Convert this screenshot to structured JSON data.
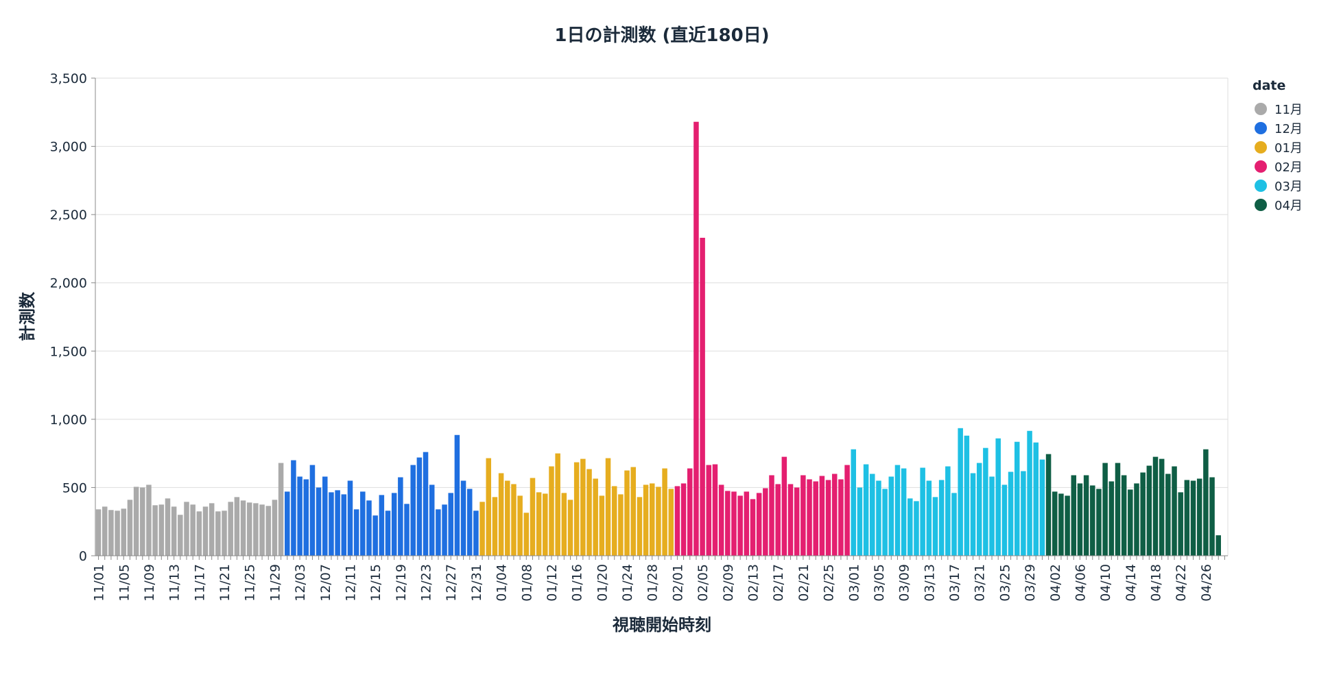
{
  "chart_data": {
    "type": "bar",
    "title": "1日の計測数 (直近180日)",
    "xlabel": "視聴開始時刻",
    "ylabel": "計測数",
    "ylim": [
      0,
      3500
    ],
    "yticks": [
      "0",
      "500",
      "1,000",
      "1,500",
      "2,000",
      "2,500",
      "3,000",
      "3,500"
    ],
    "grid": true,
    "legend": {
      "title": "date",
      "position": "right"
    },
    "series": [
      {
        "name": "11月",
        "color": "#aaaaaa",
        "x": [
          "11/01",
          "11/02",
          "11/03",
          "11/04",
          "11/05",
          "11/06",
          "11/07",
          "11/08",
          "11/09",
          "11/10",
          "11/11",
          "11/12",
          "11/13",
          "11/14",
          "11/15",
          "11/16",
          "11/17",
          "11/18",
          "11/19",
          "11/20",
          "11/21",
          "11/22",
          "11/23",
          "11/24",
          "11/25",
          "11/26",
          "11/27",
          "11/28",
          "11/29",
          "11/30"
        ],
        "values": [
          340,
          360,
          335,
          330,
          345,
          410,
          505,
          500,
          520,
          370,
          375,
          420,
          360,
          300,
          395,
          375,
          325,
          360,
          385,
          325,
          330,
          395,
          430,
          405,
          390,
          385,
          375,
          365,
          410,
          680
        ]
      },
      {
        "name": "12月",
        "color": "#1f6fe0",
        "x": [
          "12/01",
          "12/02",
          "12/03",
          "12/04",
          "12/05",
          "12/06",
          "12/07",
          "12/08",
          "12/09",
          "12/10",
          "12/11",
          "12/12",
          "12/13",
          "12/14",
          "12/15",
          "12/16",
          "12/17",
          "12/18",
          "12/19",
          "12/20",
          "12/21",
          "12/22",
          "12/23",
          "12/24",
          "12/25",
          "12/26",
          "12/27",
          "12/28",
          "12/29",
          "12/30",
          "12/31"
        ],
        "values": [
          470,
          700,
          580,
          560,
          665,
          500,
          580,
          465,
          480,
          450,
          550,
          340,
          470,
          405,
          295,
          445,
          330,
          460,
          575,
          380,
          665,
          720,
          760,
          520,
          340,
          375,
          460,
          885,
          550,
          490,
          330
        ]
      },
      {
        "name": "01月",
        "color": "#e6ad1f",
        "x": [
          "01/01",
          "01/02",
          "01/03",
          "01/04",
          "01/05",
          "01/06",
          "01/07",
          "01/08",
          "01/09",
          "01/10",
          "01/11",
          "01/12",
          "01/13",
          "01/14",
          "01/15",
          "01/16",
          "01/17",
          "01/18",
          "01/19",
          "01/20",
          "01/21",
          "01/22",
          "01/23",
          "01/24",
          "01/25",
          "01/26",
          "01/27",
          "01/28",
          "01/29",
          "01/30",
          "01/31"
        ],
        "values": [
          395,
          715,
          430,
          605,
          550,
          525,
          440,
          315,
          570,
          465,
          455,
          655,
          750,
          460,
          410,
          685,
          710,
          635,
          565,
          440,
          715,
          510,
          450,
          625,
          650,
          430,
          520,
          530,
          505,
          640,
          490
        ]
      },
      {
        "name": "02月",
        "color": "#e41f70",
        "x": [
          "02/01",
          "02/02",
          "02/03",
          "02/04",
          "02/05",
          "02/06",
          "02/07",
          "02/08",
          "02/09",
          "02/10",
          "02/11",
          "02/12",
          "02/13",
          "02/14",
          "02/15",
          "02/16",
          "02/17",
          "02/18",
          "02/19",
          "02/20",
          "02/21",
          "02/22",
          "02/23",
          "02/24",
          "02/25",
          "02/26",
          "02/27",
          "02/28"
        ],
        "values": [
          510,
          530,
          640,
          3180,
          2330,
          665,
          670,
          520,
          475,
          470,
          440,
          470,
          415,
          460,
          495,
          590,
          525,
          725,
          525,
          500,
          590,
          560,
          545,
          585,
          555,
          600,
          560,
          665
        ]
      },
      {
        "name": "03月",
        "color": "#1ec0e4",
        "x": [
          "03/01",
          "03/02",
          "03/03",
          "03/04",
          "03/05",
          "03/06",
          "03/07",
          "03/08",
          "03/09",
          "03/10",
          "03/11",
          "03/12",
          "03/13",
          "03/14",
          "03/15",
          "03/16",
          "03/17",
          "03/18",
          "03/19",
          "03/20",
          "03/21",
          "03/22",
          "03/23",
          "03/24",
          "03/25",
          "03/26",
          "03/27",
          "03/28",
          "03/29",
          "03/30",
          "03/31"
        ],
        "values": [
          780,
          500,
          670,
          600,
          550,
          490,
          580,
          665,
          640,
          420,
          400,
          645,
          550,
          430,
          555,
          655,
          460,
          935,
          880,
          605,
          680,
          790,
          580,
          860,
          520,
          615,
          835,
          620,
          915,
          830,
          705
        ]
      },
      {
        "name": "04月",
        "color": "#0f5e45",
        "x": [
          "04/01",
          "04/02",
          "04/03",
          "04/04",
          "04/05",
          "04/06",
          "04/07",
          "04/08",
          "04/09",
          "04/10",
          "04/11",
          "04/12",
          "04/13",
          "04/14",
          "04/15",
          "04/16",
          "04/17",
          "04/18",
          "04/19",
          "04/20",
          "04/21",
          "04/22",
          "04/23",
          "04/24",
          "04/25",
          "04/26",
          "04/27",
          "04/28",
          "04/29"
        ],
        "values": [
          745,
          470,
          455,
          440,
          590,
          530,
          590,
          515,
          490,
          680,
          545,
          680,
          590,
          485,
          530,
          610,
          660,
          725,
          710,
          600,
          655,
          465,
          555,
          550,
          565,
          780,
          575,
          150,
          0
        ]
      }
    ],
    "xtick_labels": [
      "11/01",
      "11/05",
      "11/09",
      "11/13",
      "11/17",
      "11/21",
      "11/25",
      "11/29",
      "12/03",
      "12/07",
      "12/11",
      "12/15",
      "12/19",
      "12/23",
      "12/27",
      "12/31",
      "01/04",
      "01/08",
      "01/12",
      "01/16",
      "01/20",
      "01/24",
      "01/28",
      "02/01",
      "02/05",
      "02/09",
      "02/13",
      "02/17",
      "02/21",
      "02/25",
      "03/01",
      "03/05",
      "03/09",
      "03/13",
      "03/17",
      "03/21",
      "03/25",
      "03/29",
      "04/02",
      "04/06",
      "04/10",
      "04/14",
      "04/18",
      "04/22",
      "04/26"
    ]
  }
}
